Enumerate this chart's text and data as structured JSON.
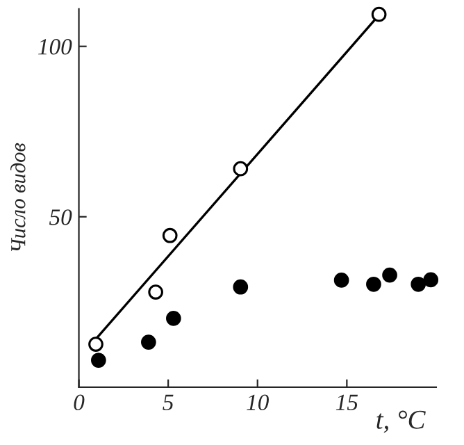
{
  "chart_data": {
    "type": "scatter",
    "xlabel": "t, °C",
    "ylabel": "Число видов",
    "xlim": [
      0,
      20
    ],
    "ylim": [
      0,
      111
    ],
    "xticks": [
      0,
      5,
      10,
      15
    ],
    "yticks": [
      50,
      100
    ],
    "grid": false,
    "legend": false,
    "series": [
      {
        "marker": "circle",
        "color": "#ffffff",
        "x": [
          0.95,
          4.3,
          5.1,
          9.05,
          16.8
        ],
        "values": [
          12.6,
          27.9,
          44.5,
          64.1,
          109.4
        ]
      },
      {
        "marker": "circle",
        "color": "#000000",
        "x": [
          1.1,
          3.9,
          5.3,
          9.05,
          14.7,
          16.5,
          17.4,
          19.0,
          19.7
        ],
        "values": [
          7.9,
          13.2,
          20.2,
          29.4,
          31.4,
          30.2,
          32.9,
          30.2,
          31.5
        ]
      },
      {
        "type": "line",
        "marker": "none",
        "color": "#000000",
        "x": [
          0.95,
          16.85
        ],
        "values": [
          14.1,
          109.5
        ]
      }
    ]
  }
}
